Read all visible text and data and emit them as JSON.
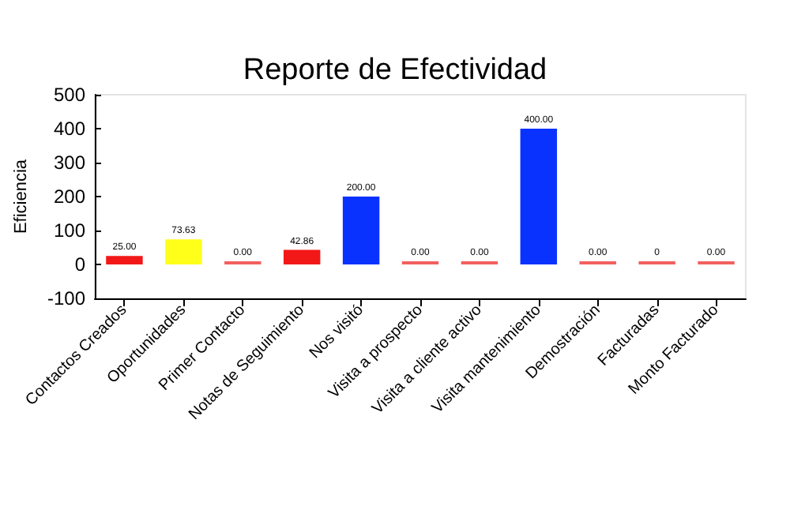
{
  "chart_data": {
    "type": "bar",
    "title": "Reporte de Efectividad",
    "ylabel": "Eficiencia",
    "categories": [
      "Contactos Creados",
      "Oportunidades",
      "Primer Contacto",
      "Notas de Seguimiento",
      "Nos visitó",
      "Visita a prospecto",
      "Visita a cliente activo",
      "Visita mantenimiento",
      "Demostración",
      "Facturadas",
      "Monto Facturado"
    ],
    "values": [
      25,
      73.63,
      0,
      42.86,
      200,
      0,
      0,
      400,
      0,
      0,
      0
    ],
    "colors": [
      "#f21818",
      "#ffff1a",
      "#f26060",
      "#f21818",
      "#0a32ff",
      "#f26060",
      "#f26060",
      "#0a32ff",
      "#f26060",
      "#f26060",
      "#f26060"
    ],
    "value_labels": [
      "25.00",
      "73.63",
      "0.00",
      "42.86",
      "200.00",
      "0.00",
      "0.00",
      "400.00",
      "0.00",
      "0",
      "0.00"
    ],
    "ylim": [
      -100,
      500
    ],
    "yticks": [
      -100,
      0,
      100,
      200,
      300,
      400,
      500
    ]
  }
}
